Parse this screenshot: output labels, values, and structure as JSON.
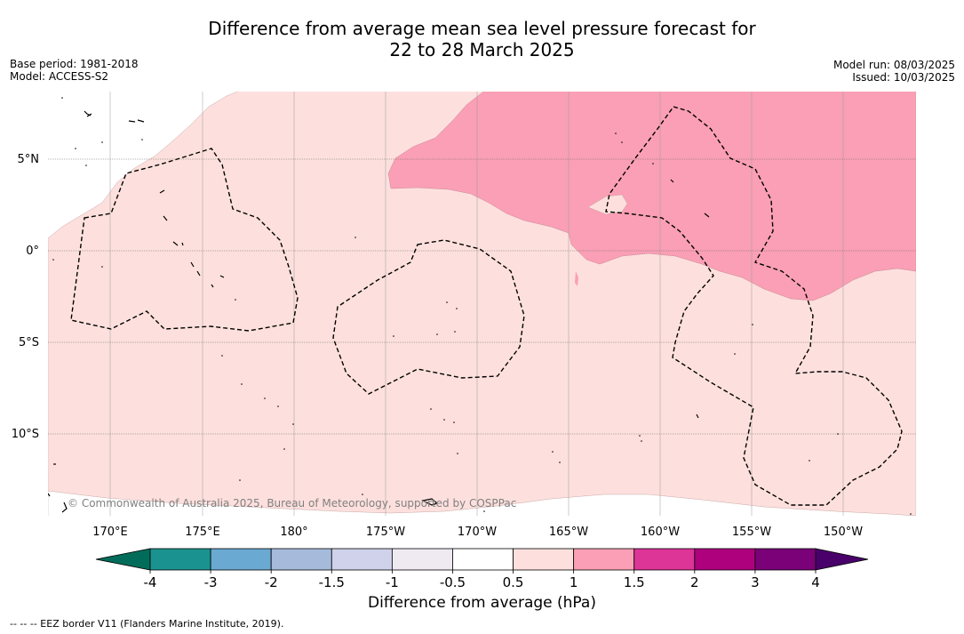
{
  "title_line1": "Difference from average mean sea level pressure forecast for",
  "title_line2": "22 to 28 March 2025",
  "base_period": "Base period: 1981-2018",
  "model": "Model: ACCESS-S2",
  "model_run": "Model run: 08/03/2025",
  "issued": "Issued: 10/03/2025",
  "credit": "© Commonwealth of Australia 2025, Bureau of Meteorology, supported by COSPPac",
  "lon_labels": [
    "170°E",
    "175°E",
    "180°",
    "175°W",
    "170°W",
    "165°W",
    "160°W",
    "155°W",
    "150°W"
  ],
  "lat_labels": [
    "5°N",
    "0°",
    "5°S",
    "10°S"
  ],
  "colorbar": {
    "ticks": [
      "-4",
      "-3",
      "-2",
      "-1.5",
      "-1",
      "-0.5",
      "0.5",
      "1",
      "1.5",
      "2",
      "3",
      "4"
    ],
    "colors": [
      "#1a9390",
      "#6aa9d2",
      "#a6bbdc",
      "#cfd2ea",
      "#efe9f2",
      "#ffffff",
      "#fde0dd",
      "#fa9fb5",
      "#dd3497",
      "#ae017e",
      "#7a0177"
    ],
    "under_color": "#016c59",
    "over_color": "#49006a",
    "label": "Difference from average (hPa)"
  },
  "map_colors": {
    "light_pink": "#fde0dd",
    "mid_pink": "#fa9fb5"
  },
  "footnote": "--  --  -- EEZ border V11 (Flanders Marine Institute, 2019)."
}
